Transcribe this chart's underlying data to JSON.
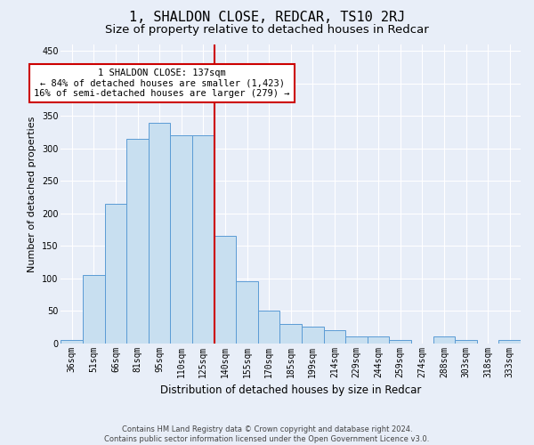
{
  "title": "1, SHALDON CLOSE, REDCAR, TS10 2RJ",
  "subtitle": "Size of property relative to detached houses in Redcar",
  "xlabel": "Distribution of detached houses by size in Redcar",
  "ylabel": "Number of detached properties",
  "bin_labels": [
    "36sqm",
    "51sqm",
    "66sqm",
    "81sqm",
    "95sqm",
    "110sqm",
    "125sqm",
    "140sqm",
    "155sqm",
    "170sqm",
    "185sqm",
    "199sqm",
    "214sqm",
    "229sqm",
    "244sqm",
    "259sqm",
    "274sqm",
    "288sqm",
    "303sqm",
    "318sqm",
    "333sqm"
  ],
  "bar_heights": [
    5,
    105,
    215,
    315,
    340,
    320,
    320,
    165,
    95,
    50,
    30,
    25,
    20,
    10,
    10,
    5,
    0,
    10,
    5,
    0,
    5
  ],
  "bar_color": "#c8dff0",
  "bar_edge_color": "#5b9bd5",
  "vline_color": "#cc0000",
  "annotation_title": "1 SHALDON CLOSE: 137sqm",
  "annotation_line1": "← 84% of detached houses are smaller (1,423)",
  "annotation_line2": "16% of semi-detached houses are larger (279) →",
  "annotation_box_color": "#ffffff",
  "annotation_box_edge": "#cc0000",
  "footer_line1": "Contains HM Land Registry data © Crown copyright and database right 2024.",
  "footer_line2": "Contains public sector information licensed under the Open Government Licence v3.0.",
  "ylim": [
    0,
    460
  ],
  "yticks": [
    0,
    50,
    100,
    150,
    200,
    250,
    300,
    350,
    400,
    450
  ],
  "background_color": "#e8eef8",
  "grid_color": "#ffffff",
  "title_fontsize": 11,
  "subtitle_fontsize": 9.5,
  "xlabel_fontsize": 8.5,
  "ylabel_fontsize": 8,
  "tick_fontsize": 7,
  "footer_fontsize": 6,
  "ann_fontsize": 7.5
}
